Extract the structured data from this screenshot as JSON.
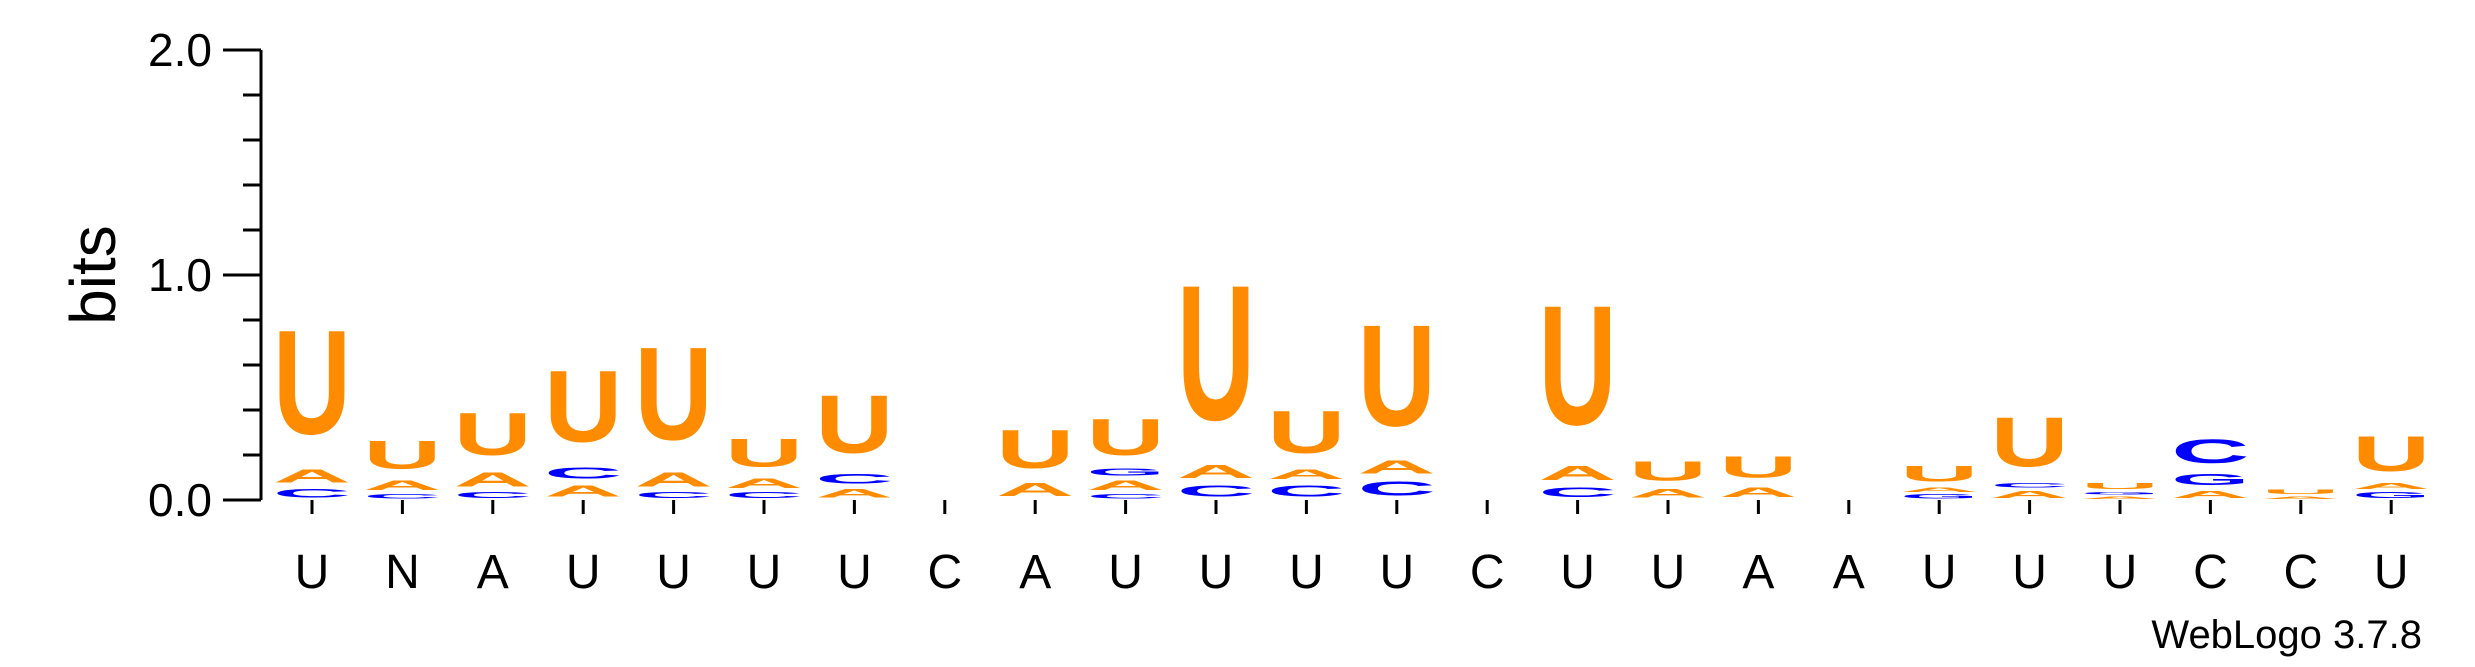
{
  "app": {
    "credit": "WebLogo 3.7.8"
  },
  "colors": {
    "A": "#FF8C00",
    "U": "#FF8C00",
    "C": "#0000FF",
    "G": "#0000FF"
  },
  "chart_data": {
    "type": "sequence-logo",
    "ylabel": "bits",
    "ylim": [
      0,
      2.0
    ],
    "yticks": [
      "0.0",
      "1.0",
      "2.0"
    ],
    "positions": [
      "U",
      "N",
      "A",
      "U",
      "U",
      "U",
      "U",
      "C",
      "A",
      "U",
      "U",
      "U",
      "U",
      "C",
      "U",
      "U",
      "A",
      "A",
      "U",
      "U",
      "U",
      "C",
      "C",
      "U"
    ],
    "stacks": [
      [
        [
          "C",
          0.06
        ],
        [
          "A",
          0.09
        ],
        [
          "U",
          0.74
        ]
      ],
      [
        [
          "C",
          0.03
        ],
        [
          "A",
          0.07
        ],
        [
          "U",
          0.2
        ]
      ],
      [
        [
          "C",
          0.04
        ],
        [
          "A",
          0.1
        ],
        [
          "U",
          0.3
        ]
      ],
      [
        [
          "A",
          0.08
        ],
        [
          "C",
          0.08
        ],
        [
          "U",
          0.51
        ]
      ],
      [
        [
          "C",
          0.04
        ],
        [
          "A",
          0.1
        ],
        [
          "U",
          0.66
        ]
      ],
      [
        [
          "C",
          0.04
        ],
        [
          "A",
          0.07
        ],
        [
          "U",
          0.2
        ]
      ],
      [
        [
          "A",
          0.06
        ],
        [
          "C",
          0.07
        ],
        [
          "U",
          0.41
        ]
      ],
      [],
      [
        [
          "A",
          0.09
        ],
        [
          "U",
          0.27
        ]
      ],
      [
        [
          "C",
          0.03
        ],
        [
          "A",
          0.07
        ],
        [
          "G",
          0.05
        ],
        [
          "U",
          0.26
        ]
      ],
      [
        [
          "C",
          0.08
        ],
        [
          "A",
          0.09
        ],
        [
          "U",
          0.96
        ]
      ],
      [
        [
          "C",
          0.08
        ],
        [
          "A",
          0.07
        ],
        [
          "U",
          0.3
        ]
      ],
      [
        [
          "C",
          0.1
        ],
        [
          "A",
          0.09
        ],
        [
          "U",
          0.72
        ]
      ],
      [],
      [
        [
          "C",
          0.07
        ],
        [
          "A",
          0.1
        ],
        [
          "U",
          0.85
        ]
      ],
      [
        [
          "A",
          0.06
        ],
        [
          "U",
          0.14
        ]
      ],
      [
        [
          "A",
          0.07
        ],
        [
          "U",
          0.15
        ]
      ],
      [],
      [
        [
          "G",
          0.03
        ],
        [
          "A",
          0.03
        ],
        [
          "U",
          0.11
        ]
      ],
      [
        [
          "A",
          0.05
        ],
        [
          "C",
          0.03
        ],
        [
          "U",
          0.35
        ]
      ],
      [
        [
          "A",
          0.02
        ],
        [
          "G",
          0.02
        ],
        [
          "U",
          0.04
        ]
      ],
      [
        [
          "A",
          0.05
        ],
        [
          "G",
          0.08
        ],
        [
          "C",
          0.17
        ]
      ],
      [
        [
          "A",
          0.02
        ],
        [
          "U",
          0.03
        ]
      ],
      [
        [
          "G",
          0.04
        ],
        [
          "A",
          0.04
        ],
        [
          "U",
          0.25
        ]
      ]
    ]
  }
}
